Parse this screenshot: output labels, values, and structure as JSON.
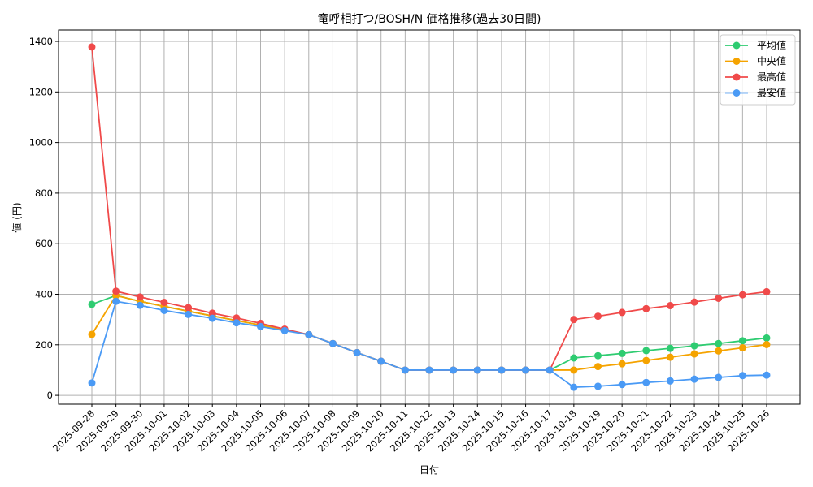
{
  "chart_data": {
    "type": "line",
    "title": "竜呼相打つ/BOSH/N 価格推移(過去30日間)",
    "xlabel": "日付",
    "ylabel": "値 (円)",
    "ylim": [
      -35,
      1445
    ],
    "yticks": [
      0,
      200,
      400,
      600,
      800,
      1000,
      1200,
      1400
    ],
    "grid": true,
    "legend_position": "upper right",
    "categories": [
      "2025-09-28",
      "2025-09-29",
      "2025-09-30",
      "2025-10-01",
      "2025-10-02",
      "2025-10-03",
      "2025-10-04",
      "2025-10-05",
      "2025-10-06",
      "2025-10-07",
      "2025-10-08",
      "2025-10-09",
      "2025-10-10",
      "2025-10-11",
      "2025-10-12",
      "2025-10-13",
      "2025-10-14",
      "2025-10-15",
      "2025-10-16",
      "2025-10-17",
      "2025-10-18",
      "2025-10-19",
      "2025-10-20",
      "2025-10-21",
      "2025-10-22",
      "2025-10-23",
      "2025-10-24",
      "2025-10-25",
      "2025-10-26"
    ],
    "series": [
      {
        "name": "平均値",
        "color": "#2ecc71",
        "values": [
          360,
          395,
          372,
          352,
          333,
          314,
          296,
          278,
          259,
          240,
          205,
          169,
          135,
          100,
          100,
          100,
          100,
          100,
          100,
          100,
          148,
          157,
          166,
          177,
          186,
          196,
          205,
          216,
          227
        ]
      },
      {
        "name": "中央値",
        "color": "#f5a300",
        "values": [
          241,
          395,
          372,
          352,
          333,
          314,
          296,
          278,
          259,
          240,
          205,
          169,
          135,
          100,
          100,
          100,
          100,
          100,
          100,
          100,
          100,
          114,
          125,
          138,
          151,
          164,
          176,
          188,
          201
        ]
      },
      {
        "name": "最高値",
        "color": "#f04a4a",
        "values": [
          1378,
          412,
          389,
          368,
          347,
          325,
          306,
          285,
          262,
          240,
          205,
          169,
          135,
          100,
          100,
          100,
          100,
          100,
          100,
          100,
          300,
          313,
          328,
          343,
          355,
          369,
          384,
          398,
          410
        ]
      },
      {
        "name": "最安値",
        "color": "#4a9af5",
        "values": [
          49,
          372,
          356,
          336,
          320,
          305,
          287,
          272,
          256,
          240,
          205,
          169,
          135,
          100,
          100,
          100,
          100,
          100,
          100,
          100,
          32,
          36,
          43,
          51,
          57,
          64,
          71,
          78,
          80
        ]
      }
    ]
  }
}
